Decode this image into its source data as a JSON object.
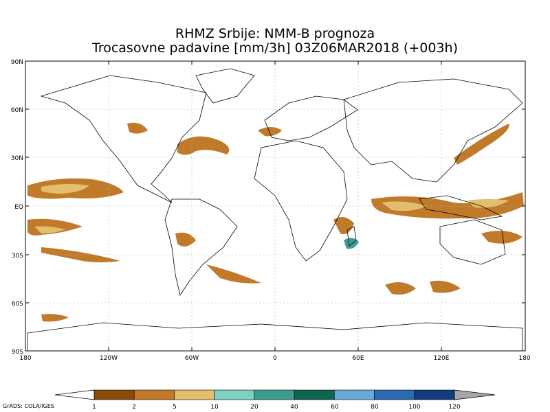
{
  "title": {
    "line1": "RHMZ Srbije: NMM-B prognoza",
    "line2": "Trocasovne padavine [mm/3h] 03Z06MAR2018 (+003h)"
  },
  "axes": {
    "lat_labels": [
      "90N",
      "60N",
      "30N",
      "EQ",
      "30S",
      "60S",
      "90S"
    ],
    "lon_labels": [
      "180",
      "120W",
      "60W",
      "0",
      "60E",
      "120E",
      "180"
    ]
  },
  "colorbar": {
    "ticks": [
      "1",
      "2",
      "5",
      "10",
      "20",
      "40",
      "60",
      "80",
      "100",
      "120"
    ],
    "colors": [
      "#8B4A0A",
      "#C07A2A",
      "#E2BE6E",
      "#7FD0C0",
      "#3E9C8E",
      "#0E6650",
      "#6AA8D8",
      "#2A6AB0",
      "#133A7A",
      "#A6A6A6"
    ]
  },
  "map": {
    "land_outline": "#000000",
    "grid": "#b0b0b0",
    "precip_colors": {
      "light": "#C07A2A",
      "moderate": "#E2BE6E",
      "heavy": "#7FD0C0",
      "very_heavy": "#3E9C8E"
    }
  },
  "credit": "GrADS: COLA/IGES"
}
